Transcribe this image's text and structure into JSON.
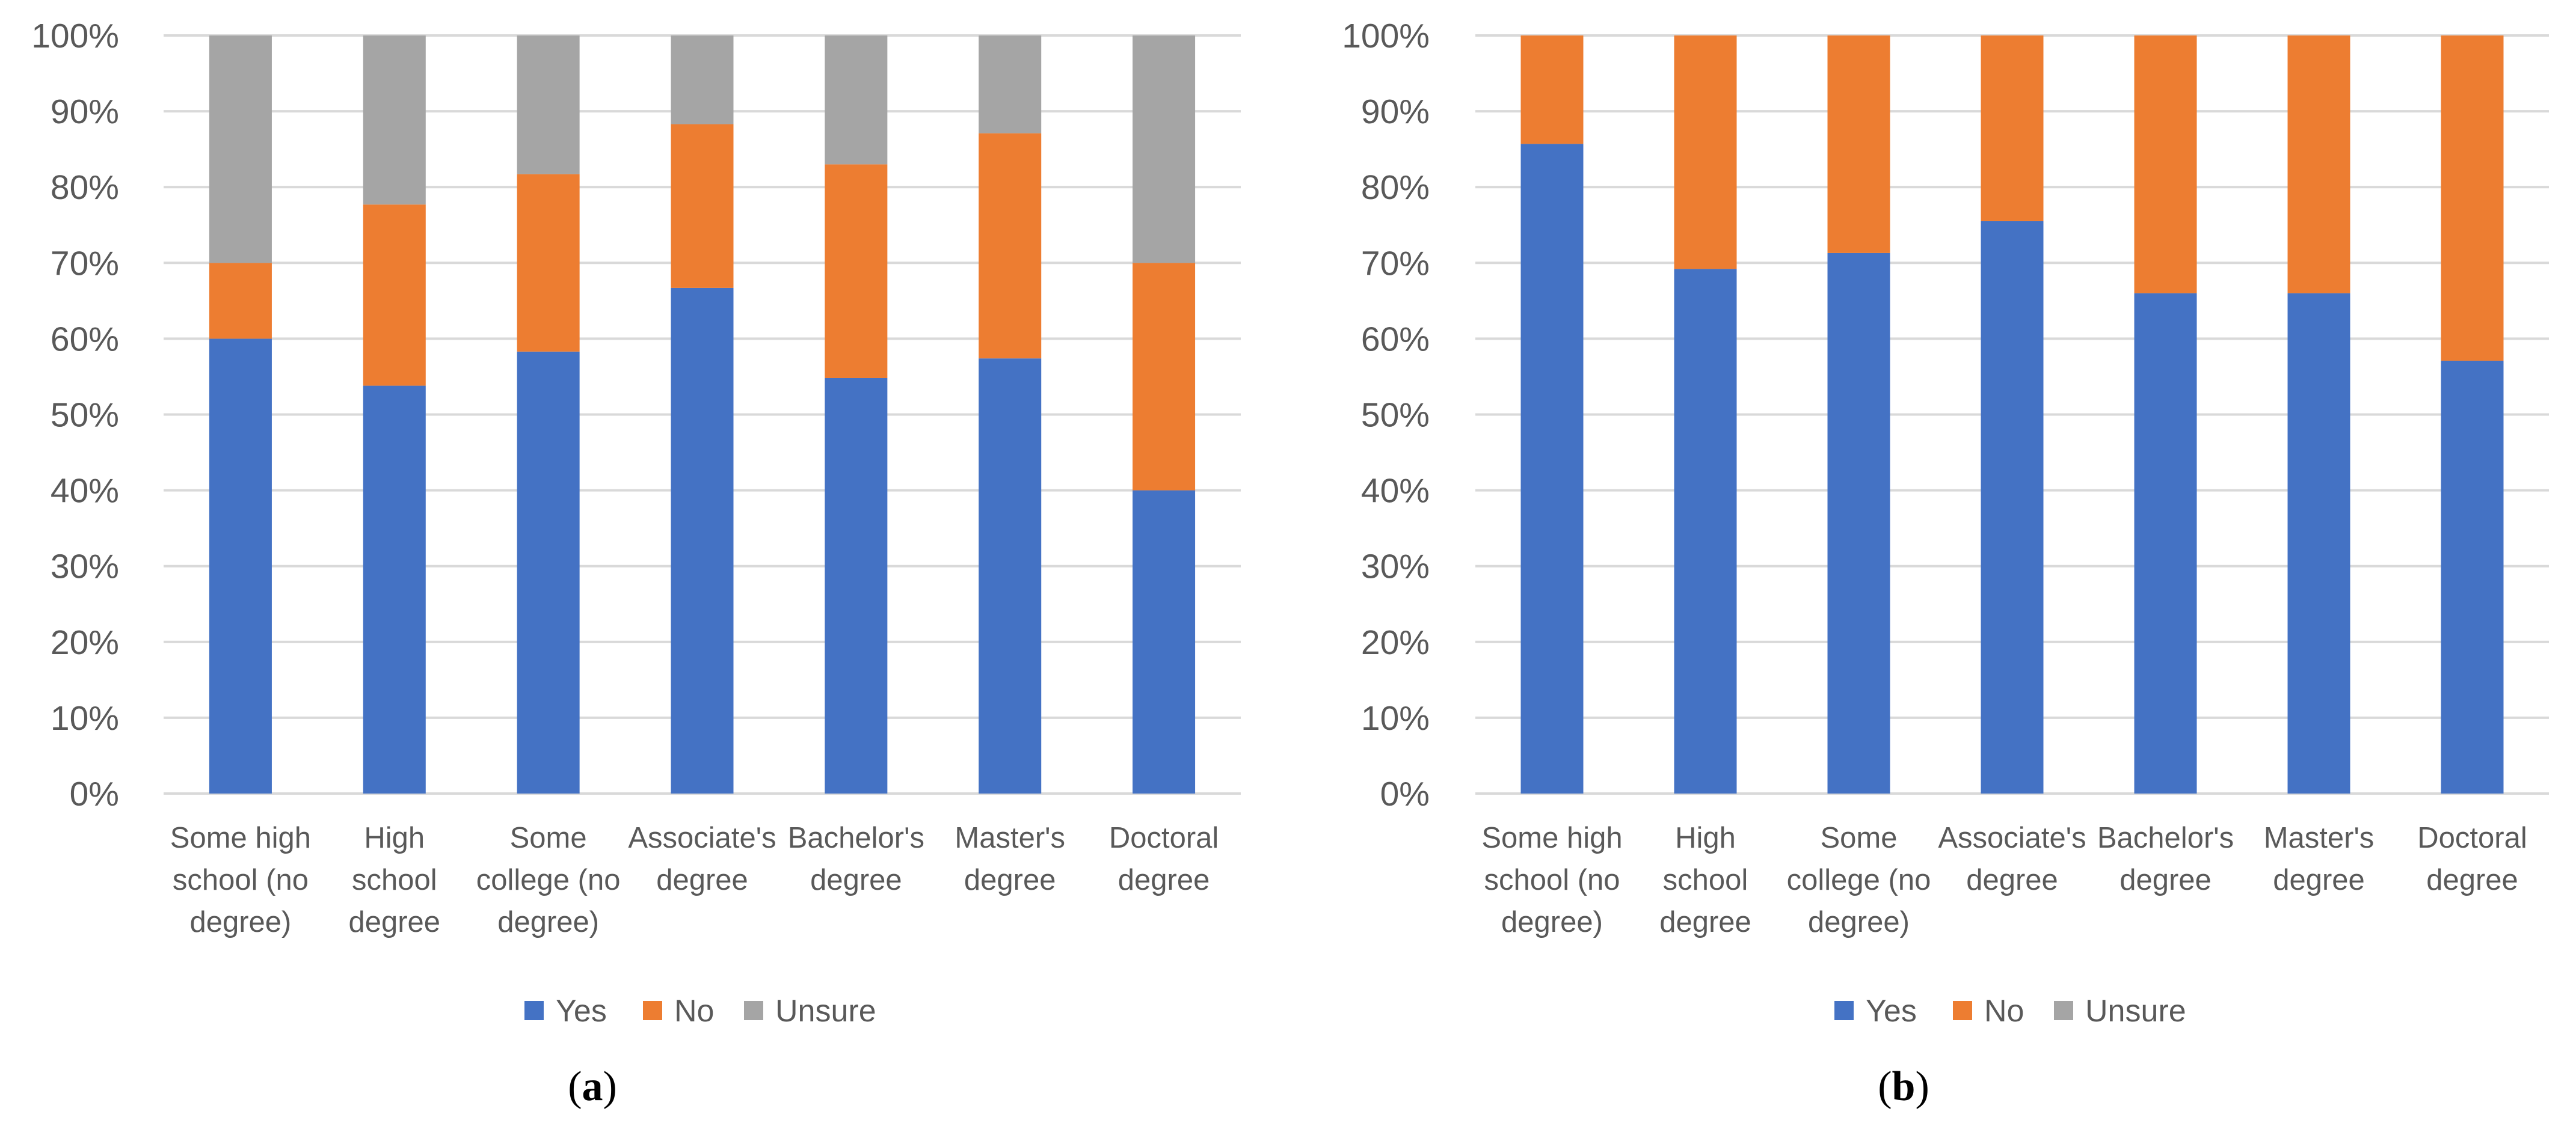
{
  "chart_data": [
    {
      "type": "bar",
      "stacked": true,
      "caption_letter": "a",
      "categories": [
        [
          "Some high",
          "school (no",
          "degree)"
        ],
        [
          "High",
          "school",
          "degree"
        ],
        [
          "Some",
          "college (no",
          "degree)"
        ],
        [
          "Associate's",
          "degree"
        ],
        [
          "Bachelor's",
          "degree"
        ],
        [
          "Master's",
          "degree"
        ],
        [
          "Doctoral",
          "degree"
        ]
      ],
      "series": [
        {
          "name": "Yes",
          "color": "#4472C4",
          "values": [
            60,
            53.8,
            58.3,
            66.7,
            54.8,
            57.4,
            40
          ]
        },
        {
          "name": "No",
          "color": "#ED7D31",
          "values": [
            10,
            23.9,
            23.4,
            21.6,
            28.2,
            29.7,
            30
          ]
        },
        {
          "name": "Unsure",
          "color": "#A5A5A5",
          "values": [
            30,
            22.3,
            18.3,
            11.7,
            17,
            12.9,
            30
          ]
        }
      ],
      "ylim": [
        0,
        100
      ],
      "yticks": [
        "0%",
        "10%",
        "20%",
        "30%",
        "40%",
        "50%",
        "60%",
        "70%",
        "80%",
        "90%",
        "100%"
      ],
      "grid": true,
      "legend": "bottom"
    },
    {
      "type": "bar",
      "stacked": true,
      "caption_letter": "b",
      "categories": [
        [
          "Some high",
          "school (no",
          "degree)"
        ],
        [
          "High",
          "school",
          "degree"
        ],
        [
          "Some",
          "college (no",
          "degree)"
        ],
        [
          "Associate's",
          "degree"
        ],
        [
          "Bachelor's",
          "degree"
        ],
        [
          "Master's",
          "degree"
        ],
        [
          "Doctoral",
          "degree"
        ]
      ],
      "series": [
        {
          "name": "Yes",
          "color": "#4472C4",
          "values": [
            85.7,
            69.2,
            71.3,
            75.5,
            66,
            66,
            57.1
          ]
        },
        {
          "name": "No",
          "color": "#ED7D31",
          "values": [
            14.3,
            30.8,
            28.7,
            24.5,
            34,
            34,
            42.9
          ]
        },
        {
          "name": "Unsure",
          "color": "#A5A5A5",
          "values": [
            0,
            0,
            0,
            0,
            0,
            0,
            0
          ]
        }
      ],
      "ylim": [
        0,
        100
      ],
      "yticks": [
        "0%",
        "10%",
        "20%",
        "30%",
        "40%",
        "50%",
        "60%",
        "70%",
        "80%",
        "90%",
        "100%"
      ],
      "grid": true,
      "legend": "bottom"
    }
  ]
}
